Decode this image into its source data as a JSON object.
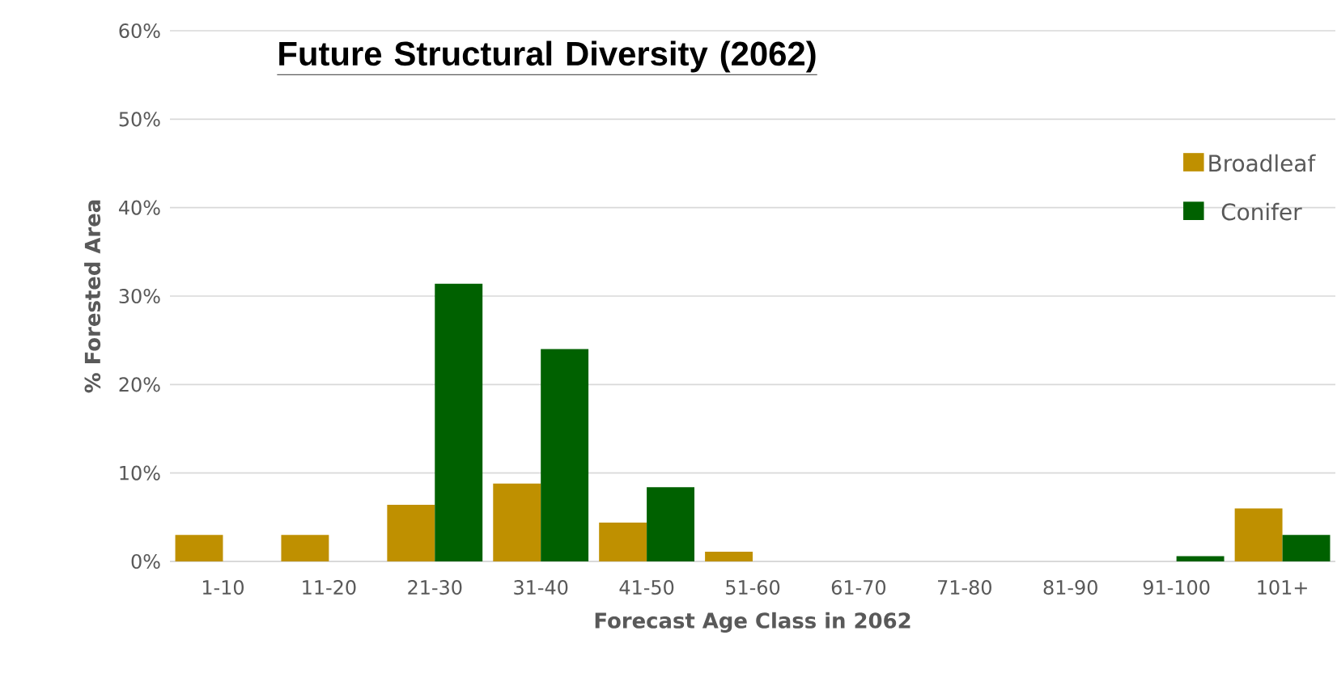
{
  "chart_data": {
    "type": "bar",
    "title": "Future Structural Diversity (2062)",
    "xlabel": "Forecast Age Class in 2062",
    "ylabel": "% Forested Area",
    "categories": [
      "1-10",
      "11-20",
      "21-30",
      "31-40",
      "41-50",
      "51-60",
      "61-70",
      "71-80",
      "81-90",
      "91-100",
      "101+"
    ],
    "series": [
      {
        "name": "Broadleaf",
        "color": "#bf9000",
        "values": [
          3,
          3,
          6.4,
          8.8,
          4.4,
          1.1,
          0,
          0,
          0,
          0,
          6
        ]
      },
      {
        "name": "Conifer",
        "color": "#006100",
        "values": [
          0,
          0,
          31.4,
          24,
          8.4,
          0,
          0,
          0,
          0,
          0.6,
          3
        ]
      }
    ],
    "ylim": [
      0,
      60
    ],
    "yticks": [
      {
        "value": 0,
        "label": "0%"
      },
      {
        "value": 10,
        "label": "10%"
      },
      {
        "value": 20,
        "label": "20%"
      },
      {
        "value": 30,
        "label": "30%"
      },
      {
        "value": 40,
        "label": "40%"
      },
      {
        "value": 50,
        "label": "50%"
      },
      {
        "value": 60,
        "label": "60%"
      }
    ],
    "grid": "y",
    "legend": "right"
  }
}
